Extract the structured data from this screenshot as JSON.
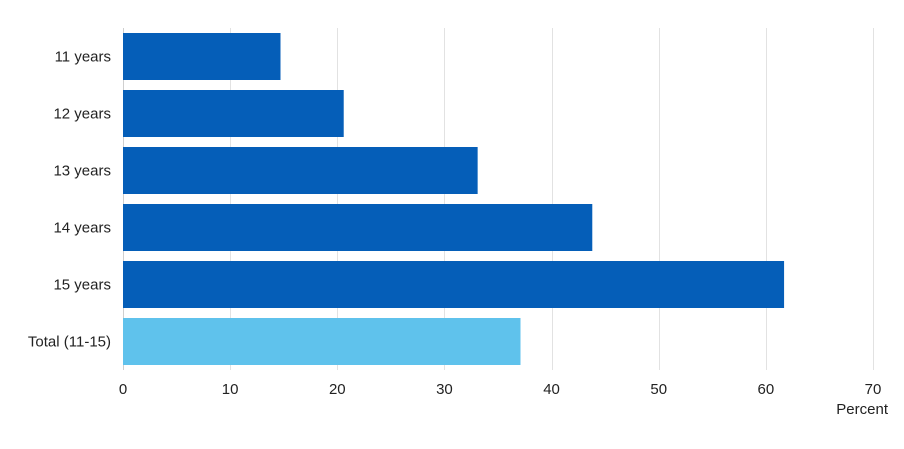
{
  "chart_data": {
    "type": "bar",
    "orientation": "horizontal",
    "title": "",
    "xlabel": "Percent",
    "ylabel": "",
    "categories": [
      "11 years",
      "12 years",
      "13 years",
      "14 years",
      "15 years",
      "Total (11-15)"
    ],
    "values": [
      14.7,
      20.6,
      33.1,
      43.8,
      61.7,
      37.1
    ],
    "bar_colors": [
      "#055eb8",
      "#055eb8",
      "#055eb8",
      "#055eb8",
      "#055eb8",
      "#5fc2ec"
    ],
    "xlim": [
      0,
      70
    ],
    "xticks": [
      0,
      10,
      20,
      30,
      40,
      50,
      60,
      70
    ],
    "grid": "vertical",
    "legend": "none"
  }
}
